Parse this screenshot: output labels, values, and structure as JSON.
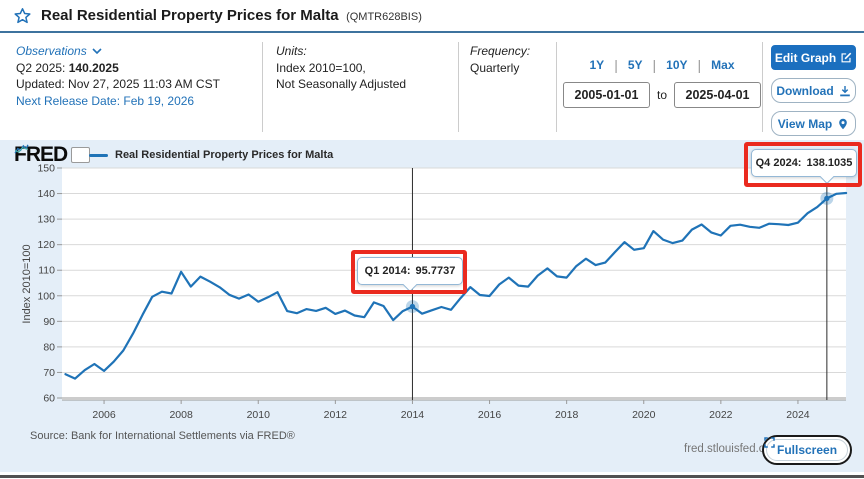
{
  "header": {
    "title": "Real Residential Property Prices for Malta",
    "series_id": "(QMTR628BIS)"
  },
  "toolbar": {
    "observations": {
      "label": "Observations",
      "latest_period": "Q2 2025:",
      "latest_value": "140.2025",
      "updated": "Updated: Nov 27, 2025 11:03 AM CST",
      "next_release": "Next Release Date: Feb 19, 2026"
    },
    "units": {
      "label": "Units:",
      "line1": "Index 2010=100,",
      "line2": "Not Seasonally Adjusted"
    },
    "frequency": {
      "label": "Frequency:",
      "value": "Quarterly"
    },
    "ranges": [
      "1Y",
      "5Y",
      "10Y",
      "Max"
    ],
    "date_from": "2005-01-01",
    "date_to_label": "to",
    "date_to": "2025-04-01",
    "buttons": {
      "edit_graph": "Edit Graph",
      "download": "Download",
      "view_map": "View Map"
    }
  },
  "chart": {
    "logo": "FRED",
    "legend": "Real Residential Property Prices for Malta",
    "y_axis_label": "Index 2010=100",
    "source": "Source: Bank for International Settlements via FRED®",
    "watermark": "fred.stlouisfed.org",
    "fullscreen_label": "Fullscreen",
    "line_color": "#1f73b7",
    "annotations": [
      {
        "period": "Q1 2014:",
        "value": "95.7737"
      },
      {
        "period": "Q4 2024:",
        "value": "138.1035"
      }
    ]
  },
  "colors": {
    "accent_blue": "#2272b8",
    "edit_button_blue": "#1b6fbf",
    "chart_background": "#e4eef8",
    "highlight_red": "#ea2a1f",
    "header_underline": "#3e739e"
  },
  "chart_data": {
    "type": "line",
    "title": "Real Residential Property Prices for Malta",
    "ylabel": "Index 2010=100",
    "frequency": "Quarterly",
    "ylim": [
      60,
      150
    ],
    "y_ticks": [
      60,
      70,
      80,
      90,
      100,
      110,
      120,
      130,
      140,
      150
    ],
    "x_ticks": [
      2006,
      2008,
      2010,
      2012,
      2014,
      2016,
      2018,
      2020,
      2022,
      2024
    ],
    "x_range": [
      2005.0,
      2025.25
    ],
    "x_start": 2005.0,
    "x_step": 0.25,
    "grid": "horizontal",
    "legend_position": "top-left",
    "values": [
      69.3,
      67.6,
      70.9,
      73.3,
      70.6,
      74.2,
      78.6,
      85.2,
      92.6,
      99.6,
      101.6,
      100.9,
      109.4,
      103.6,
      107.5,
      105.5,
      103.3,
      100.4,
      98.9,
      100.5,
      97.7,
      99.4,
      101.4,
      94.0,
      93.2,
      94.8,
      94.1,
      95.3,
      92.9,
      94.2,
      92.3,
      91.6,
      97.4,
      96.0,
      90.5,
      94.0,
      95.7737,
      93.0,
      94.3,
      95.6,
      94.5,
      99.1,
      103.4,
      100.3,
      99.9,
      104.4,
      107.1,
      104.0,
      103.6,
      107.9,
      110.7,
      107.6,
      107.1,
      111.6,
      114.5,
      112.0,
      113.0,
      117.0,
      121.0,
      118.0,
      118.6,
      125.3,
      122.0,
      120.6,
      121.6,
      125.9,
      127.9,
      124.8,
      123.6,
      127.4,
      127.8,
      127.0,
      126.6,
      128.2,
      128.0,
      127.7,
      128.6,
      132.3,
      134.7,
      138.1035,
      139.9,
      140.2025
    ],
    "highlighted_points": [
      {
        "x": 2014.0,
        "value": 95.7737,
        "label": "Q1 2014: 95.7737"
      },
      {
        "x": 2024.75,
        "value": 138.1035,
        "label": "Q4 2024: 138.1035"
      }
    ]
  }
}
